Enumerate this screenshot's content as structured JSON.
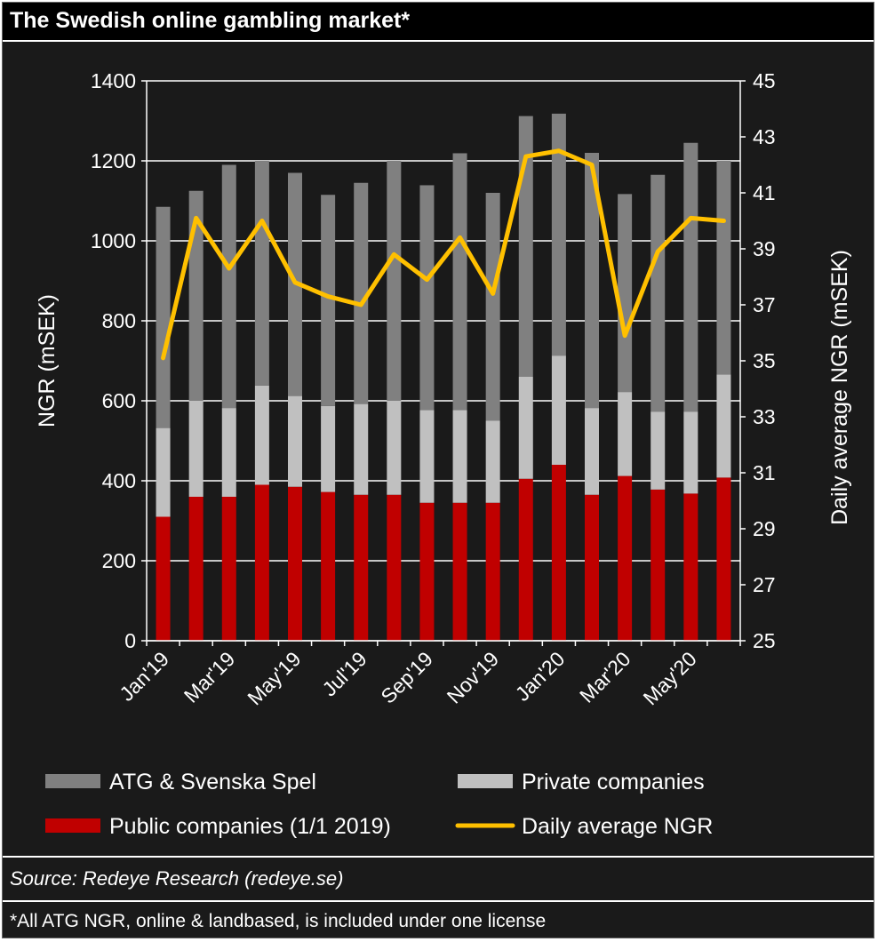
{
  "title": "The Swedish online gambling market*",
  "source": "Source: Redeye Research (redeye.se)",
  "footnote": "*All ATG NGR, online & landbased, is included under one license",
  "colors": {
    "atg": "#808080",
    "private": "#c0c0c0",
    "public": "#c00000",
    "line": "#ffc000",
    "background": "#1a1a1a",
    "text": "#ffffff"
  },
  "chart_data": {
    "type": "bar",
    "stacked": true,
    "categories": [
      "Jan'19",
      "Feb'19",
      "Mar'19",
      "Apr'19",
      "May'19",
      "Jun'19",
      "Jul'19",
      "Aug'19",
      "Sep'19",
      "Oct'19",
      "Nov'19",
      "Dec'19",
      "Jan'20",
      "Feb'20",
      "Mar'20",
      "Apr'20",
      "May'20",
      "Jun'20"
    ],
    "x_tick_labels": [
      "Jan'19",
      "Mar'19",
      "May'19",
      "Jul'19",
      "Sep'19",
      "Nov'19",
      "Jan'20",
      "Mar'20",
      "May'20"
    ],
    "ylabel": "NGR (mSEK)",
    "y2label": "Daily average NGR (mSEK)",
    "ylim": [
      0,
      1400
    ],
    "yticks": [
      0,
      200,
      400,
      600,
      800,
      1000,
      1200,
      1400
    ],
    "y2lim": [
      25,
      45
    ],
    "y2ticks": [
      25,
      27,
      29,
      31,
      33,
      35,
      37,
      39,
      41,
      43,
      45
    ],
    "grid": "horizontal",
    "series": [
      {
        "name": "Public companies (1/1 2019)",
        "axis": "left",
        "type": "bar",
        "values": [
          310,
          360,
          360,
          390,
          385,
          372,
          365,
          365,
          345,
          345,
          345,
          405,
          440,
          365,
          412,
          378,
          368,
          408
        ]
      },
      {
        "name": "Private companies",
        "axis": "left",
        "type": "bar",
        "values": [
          222,
          240,
          222,
          248,
          227,
          215,
          227,
          235,
          232,
          232,
          205,
          255,
          273,
          217,
          210,
          195,
          205,
          258
        ]
      },
      {
        "name": "ATG & Svenska Spel",
        "axis": "left",
        "type": "bar",
        "values": [
          553,
          525,
          608,
          562,
          558,
          528,
          553,
          600,
          562,
          642,
          570,
          652,
          605,
          638,
          495,
          592,
          672,
          534
        ]
      },
      {
        "name": "Daily average NGR",
        "axis": "right",
        "type": "line",
        "values": [
          35.1,
          40.1,
          38.3,
          40.0,
          37.8,
          37.3,
          37.0,
          38.8,
          37.9,
          39.4,
          37.4,
          42.3,
          42.5,
          42.0,
          35.9,
          38.9,
          40.1,
          40.0
        ]
      }
    ],
    "legend": [
      {
        "label": "ATG & Svenska Spel",
        "kind": "bar",
        "color": "#808080"
      },
      {
        "label": "Private companies",
        "kind": "bar",
        "color": "#c0c0c0"
      },
      {
        "label": "Public companies (1/1 2019)",
        "kind": "bar",
        "color": "#c00000"
      },
      {
        "label": "Daily average NGR",
        "kind": "line",
        "color": "#ffc000"
      }
    ],
    "legend_position": "bottom"
  }
}
